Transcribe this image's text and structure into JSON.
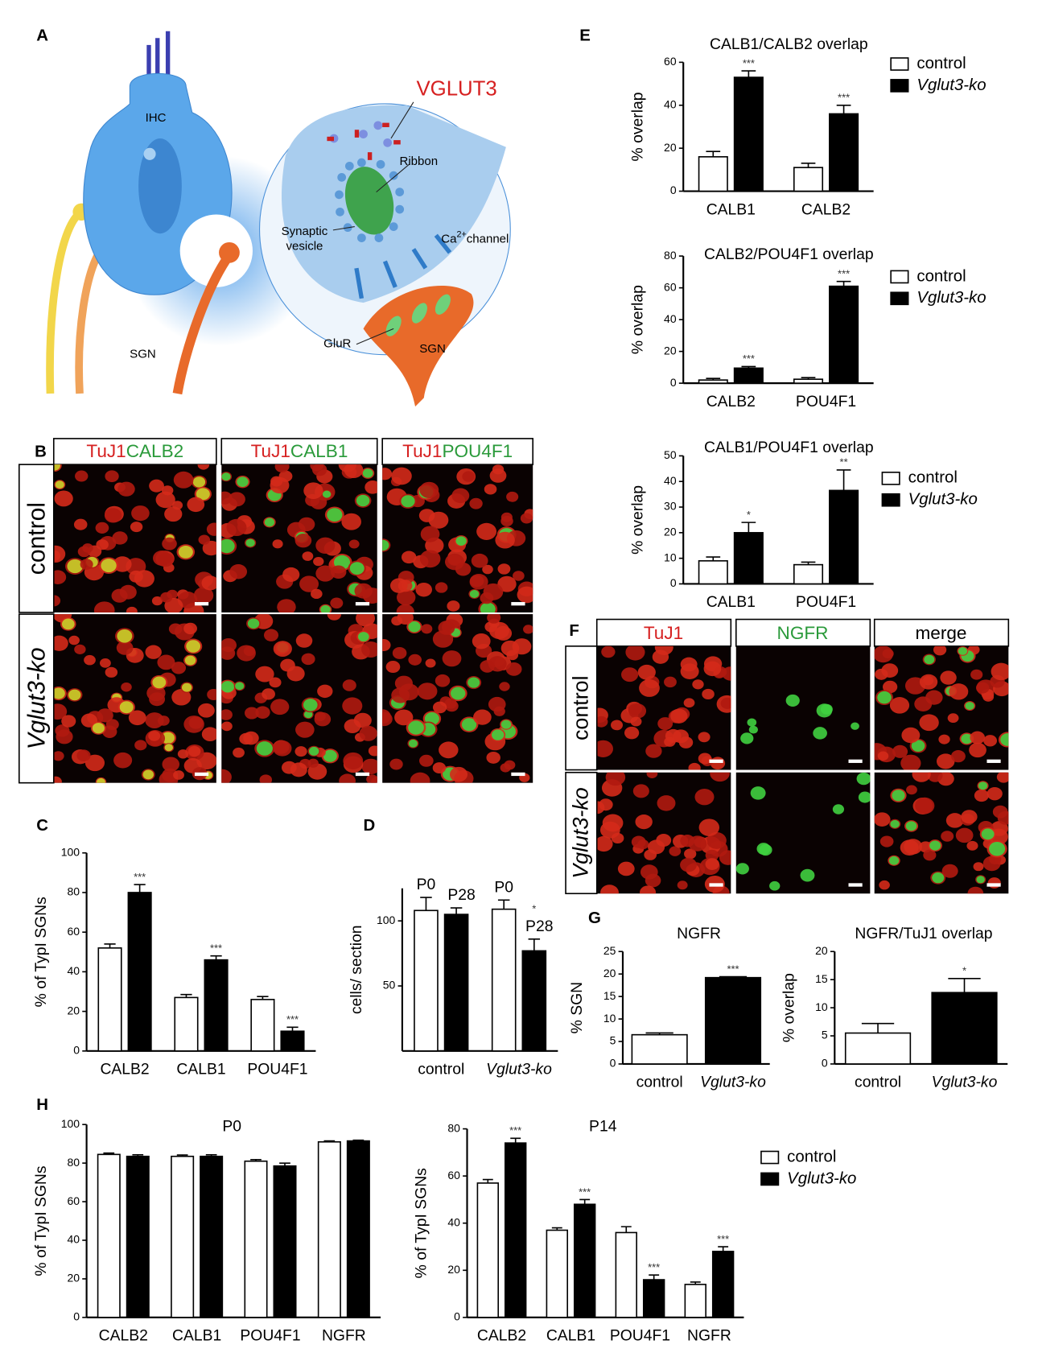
{
  "panel_labels": [
    "A",
    "B",
    "C",
    "D",
    "E",
    "F",
    "G",
    "H"
  ],
  "diagram": {
    "cell_label": "IHC",
    "neuron_label": "SGN",
    "protein_label": "VGLUT3",
    "ribbon_label": "Ribbon",
    "vesicle_label": [
      "Synaptic",
      "vesicle"
    ],
    "channel_label": "Ca",
    "channel_superscript": "2+",
    "channel_suffix": "channel",
    "receptor_label": "GluR",
    "inset_neuron_label": "SGN"
  },
  "micrographs_B": {
    "columns": [
      [
        "TuJ1",
        "CALB2"
      ],
      [
        "TuJ1",
        "CALB1"
      ],
      [
        "TuJ1",
        "POU4F1"
      ]
    ],
    "rows": [
      "control",
      "Vglut3-ko"
    ]
  },
  "micrographs_F": {
    "columns": [
      "TuJ1",
      "NGFR",
      "merge"
    ],
    "rows": [
      "control",
      "Vglut3-ko"
    ]
  },
  "chart_data": [
    {
      "type": "bar",
      "title": "CALB1/CALB2 overlap",
      "ylabel": "% overlap",
      "categories": [
        "CALB1",
        "CALB2"
      ],
      "ylim": [
        0,
        60
      ],
      "yticks": [
        0,
        20,
        40,
        60
      ],
      "legend": true,
      "series": [
        {
          "name": "control",
          "color": "#ffffff",
          "values": [
            16,
            11
          ],
          "errors": [
            2.5,
            2
          ]
        },
        {
          "name": "Vglut3-ko",
          "color": "#000000",
          "values": [
            53,
            36
          ],
          "errors": [
            3,
            4
          ],
          "significance": [
            "***",
            "***"
          ]
        }
      ]
    },
    {
      "type": "bar",
      "title": "CALB2/POU4F1 overlap",
      "ylabel": "% overlap",
      "categories": [
        "CALB2",
        "POU4F1"
      ],
      "ylim": [
        0,
        80
      ],
      "yticks": [
        0,
        20,
        40,
        60,
        80
      ],
      "legend": true,
      "series": [
        {
          "name": "control",
          "color": "#ffffff",
          "values": [
            2,
            2.5
          ],
          "errors": [
            1,
            1
          ]
        },
        {
          "name": "Vglut3-ko",
          "color": "#000000",
          "values": [
            9.5,
            61
          ],
          "errors": [
            1,
            3
          ],
          "significance": [
            "***",
            "***"
          ]
        }
      ]
    },
    {
      "type": "bar",
      "title": "CALB1/POU4F1 overlap",
      "ylabel": "% overlap",
      "categories": [
        "CALB1",
        "POU4F1"
      ],
      "ylim": [
        0,
        50
      ],
      "yticks": [
        0,
        10,
        20,
        30,
        40,
        50
      ],
      "legend": true,
      "series": [
        {
          "name": "control",
          "color": "#ffffff",
          "values": [
            9,
            7.5
          ],
          "errors": [
            1.5,
            1
          ]
        },
        {
          "name": "Vglut3-ko",
          "color": "#000000",
          "values": [
            20,
            36.5
          ],
          "errors": [
            4,
            8
          ],
          "significance": [
            "*",
            "**"
          ]
        }
      ]
    },
    {
      "type": "bar",
      "ylabel": "% of TypI SGNs",
      "categories": [
        "CALB2",
        "CALB1",
        "POU4F1"
      ],
      "ylim": [
        0,
        100
      ],
      "yticks": [
        0,
        20,
        40,
        60,
        80,
        100
      ],
      "legend": false,
      "series": [
        {
          "name": "control",
          "color": "#ffffff",
          "values": [
            52,
            27,
            26
          ],
          "errors": [
            2,
            1.5,
            1.5
          ]
        },
        {
          "name": "Vglut3-ko",
          "color": "#000000",
          "values": [
            80,
            46,
            10
          ],
          "errors": [
            4,
            2,
            2
          ],
          "significance": [
            "***",
            "***",
            "***"
          ]
        }
      ]
    },
    {
      "type": "bar",
      "ylabel": "cells/ section",
      "categories": [
        "control",
        "Vglut3-ko"
      ],
      "category_italic": [
        false,
        true
      ],
      "ylim": [
        0,
        125
      ],
      "yticks": [
        50,
        100
      ],
      "legend": false,
      "series_labels_on_bars": true,
      "series": [
        {
          "name": "P0",
          "color": "#ffffff",
          "values": [
            108,
            109
          ],
          "errors": [
            10,
            7
          ]
        },
        {
          "name": "P28",
          "color": "#000000",
          "values": [
            105,
            77
          ],
          "errors": [
            5,
            9
          ],
          "significance": [
            null,
            "*"
          ]
        }
      ]
    },
    {
      "type": "bar",
      "title": "NGFR",
      "ylabel": "% SGN",
      "categories": [
        "control",
        "Vglut3-ko"
      ],
      "category_italic": [
        false,
        true
      ],
      "ylim": [
        0,
        25
      ],
      "yticks": [
        0,
        5,
        10,
        15,
        20,
        25
      ],
      "legend": false,
      "values": [
        6.5,
        19.2
      ],
      "errors": [
        0.4,
        0.2
      ],
      "colors": [
        "#ffffff",
        "#000000"
      ],
      "significance": [
        null,
        "***"
      ]
    },
    {
      "type": "bar",
      "title": "NGFR/TuJ1 overlap",
      "ylabel": "% overlap",
      "categories": [
        "control",
        "Vglut3-ko"
      ],
      "category_italic": [
        false,
        true
      ],
      "ylim": [
        0,
        20
      ],
      "yticks": [
        0,
        5,
        10,
        15,
        20
      ],
      "legend": false,
      "values": [
        5.5,
        12.7
      ],
      "errors": [
        1.7,
        2.5
      ],
      "colors": [
        "#ffffff",
        "#000000"
      ],
      "significance": [
        null,
        "*"
      ]
    },
    {
      "type": "bar",
      "title": "P0",
      "ylabel": "% of TypI SGNs",
      "categories": [
        "CALB2",
        "CALB1",
        "POU4F1",
        "NGFR"
      ],
      "ylim": [
        0,
        100
      ],
      "yticks": [
        0,
        20,
        40,
        60,
        80,
        100
      ],
      "legend": false,
      "series": [
        {
          "name": "control",
          "color": "#ffffff",
          "values": [
            84.5,
            83.5,
            81,
            91
          ],
          "errors": [
            0.7,
            0.7,
            0.8,
            0.5
          ]
        },
        {
          "name": "Vglut3-ko",
          "color": "#000000",
          "values": [
            83.5,
            83.5,
            78.5,
            91.5
          ],
          "errors": [
            0.8,
            0.8,
            1.5,
            0.4
          ]
        }
      ]
    },
    {
      "type": "bar",
      "title": "P14",
      "ylabel": "% of TypI SGNs",
      "categories": [
        "CALB2",
        "CALB1",
        "POU4F1",
        "NGFR"
      ],
      "ylim": [
        0,
        80
      ],
      "yticks": [
        0,
        20,
        40,
        60,
        80
      ],
      "legend": true,
      "series": [
        {
          "name": "control",
          "color": "#ffffff",
          "values": [
            57,
            37,
            36,
            14
          ],
          "errors": [
            1.5,
            1,
            2.5,
            1
          ]
        },
        {
          "name": "Vglut3-ko",
          "color": "#000000",
          "values": [
            74,
            48,
            16,
            28
          ],
          "errors": [
            2,
            2,
            2,
            2
          ],
          "significance": [
            "***",
            "***",
            "***",
            "***"
          ]
        }
      ]
    }
  ]
}
